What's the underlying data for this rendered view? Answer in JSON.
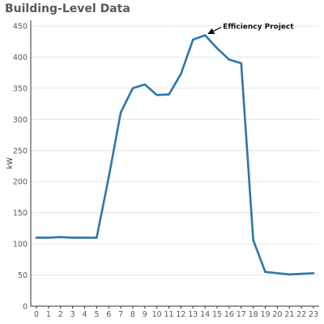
{
  "chart_data": {
    "type": "line",
    "title": "Building-Level Data",
    "xlabel": "",
    "ylabel": "kW",
    "x": [
      0,
      1,
      2,
      3,
      4,
      5,
      6,
      7,
      8,
      9,
      10,
      11,
      12,
      13,
      14,
      15,
      16,
      17,
      18,
      19,
      20,
      21,
      22,
      23
    ],
    "series": [
      {
        "name": "",
        "values": [
          110,
          110,
          111,
          110,
          110,
          110,
          207,
          311,
          350,
          356,
          339,
          340,
          373,
          428,
          435,
          414,
          396,
          390,
          106,
          55,
          53,
          51,
          52,
          53
        ]
      }
    ],
    "ylim": [
      0,
      450
    ],
    "yticks": [
      0,
      50,
      100,
      150,
      200,
      250,
      300,
      350,
      400,
      450
    ],
    "grid": true,
    "annotations": [
      {
        "text": "Efficiency Project",
        "x": 14,
        "y": 435
      }
    ],
    "colors": {
      "line": "#2b77ae",
      "grid": "#e6e6e6",
      "axis": "#333333"
    }
  }
}
